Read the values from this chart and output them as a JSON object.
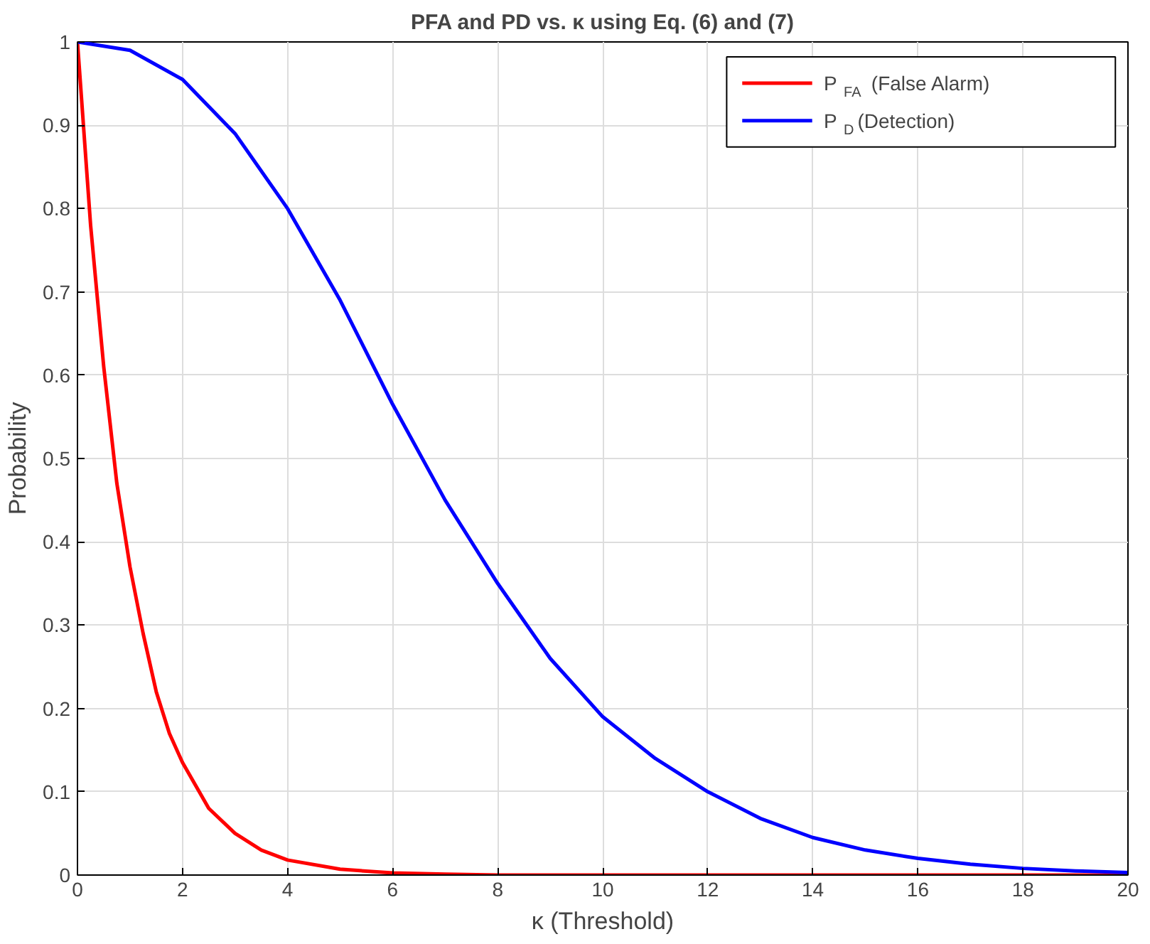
{
  "chart_data": {
    "type": "line",
    "title": "PFA and PD vs. κ using Eq. (6) and (7)",
    "xlabel": "κ (Threshold)",
    "ylabel": "Probability",
    "xlim": [
      0,
      20
    ],
    "ylim": [
      0,
      1
    ],
    "xticks": [
      0,
      2,
      4,
      6,
      8,
      10,
      12,
      14,
      16,
      18,
      20
    ],
    "yticks": [
      0,
      0.1,
      0.2,
      0.3,
      0.4,
      0.5,
      0.6,
      0.7,
      0.8,
      0.9,
      1
    ],
    "grid": true,
    "legend": "top right",
    "line_style": "solid",
    "marker": "none",
    "series": [
      {
        "name": "P$_{FA}$ (False Alarm)",
        "color": "#ff0000",
        "x": [
          0,
          0.25,
          0.5,
          0.75,
          1,
          1.25,
          1.5,
          1.75,
          2,
          2.5,
          3,
          3.5,
          4,
          5,
          6,
          7,
          8,
          10,
          12,
          14,
          16,
          18,
          20
        ],
        "values": [
          1,
          0.78,
          0.61,
          0.47,
          0.37,
          0.29,
          0.22,
          0.17,
          0.135,
          0.08,
          0.05,
          0.03,
          0.018,
          0.007,
          0.0025,
          0.001,
          0,
          0,
          0,
          0,
          0,
          0,
          0
        ]
      },
      {
        "name": "P$_{D}$ (Detection)",
        "color": "#0000ff",
        "x": [
          0,
          1,
          2,
          3,
          4,
          5,
          6,
          7,
          8,
          9,
          10,
          11,
          12,
          13,
          14,
          15,
          16,
          17,
          18,
          19,
          20
        ],
        "values": [
          1,
          0.99,
          0.955,
          0.89,
          0.8,
          0.69,
          0.565,
          0.45,
          0.35,
          0.26,
          0.19,
          0.14,
          0.1,
          0.068,
          0.045,
          0.03,
          0.02,
          0.013,
          0.008,
          0.005,
          0.003
        ]
      }
    ]
  }
}
